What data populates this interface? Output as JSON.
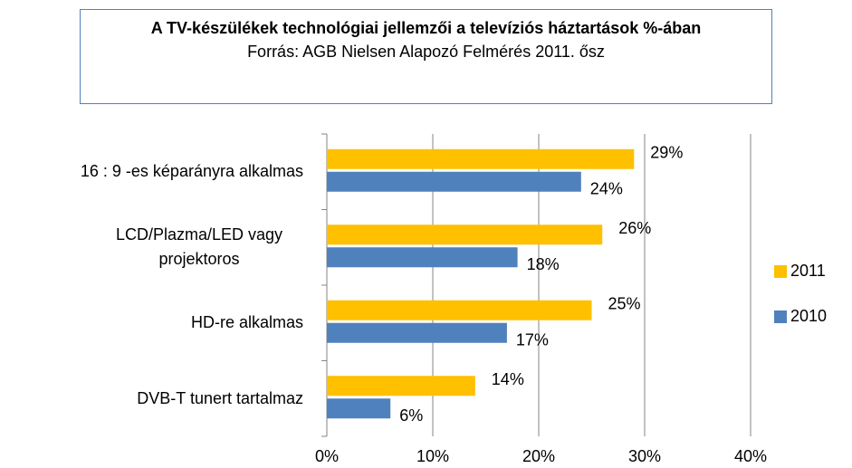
{
  "chart_data": {
    "type": "bar",
    "orientation": "horizontal",
    "title": "A TV-készülékek technológiai jellemzői a televíziós háztartások %-ában",
    "subtitle": "Forrás: AGB Nielsen Alapozó Felmérés 2011. ősz",
    "categories": [
      "16 : 9 -es képarányra alkalmas",
      "LCD/Plazma/LED vagy projektoros",
      "HD-re alkalmas",
      "DVB-T tunert tartalmaz"
    ],
    "series": [
      {
        "name": "2011",
        "color": "#ffc000",
        "values": [
          29,
          26,
          25,
          14
        ],
        "value_labels": [
          "29%",
          "26%",
          "25%",
          "14%"
        ]
      },
      {
        "name": "2010",
        "color": "#4f81bd",
        "values": [
          24,
          18,
          17,
          6
        ],
        "value_labels": [
          "24%",
          "18%",
          "17%",
          "6%"
        ]
      }
    ],
    "xlim": [
      0,
      40
    ],
    "xticks": [
      {
        "value": 0,
        "label": "0%"
      },
      {
        "value": 10,
        "label": "10%"
      },
      {
        "value": 20,
        "label": "20%"
      },
      {
        "value": 30,
        "label": "30%"
      },
      {
        "value": 40,
        "label": "40%"
      }
    ],
    "grid": true,
    "legend": "right"
  }
}
